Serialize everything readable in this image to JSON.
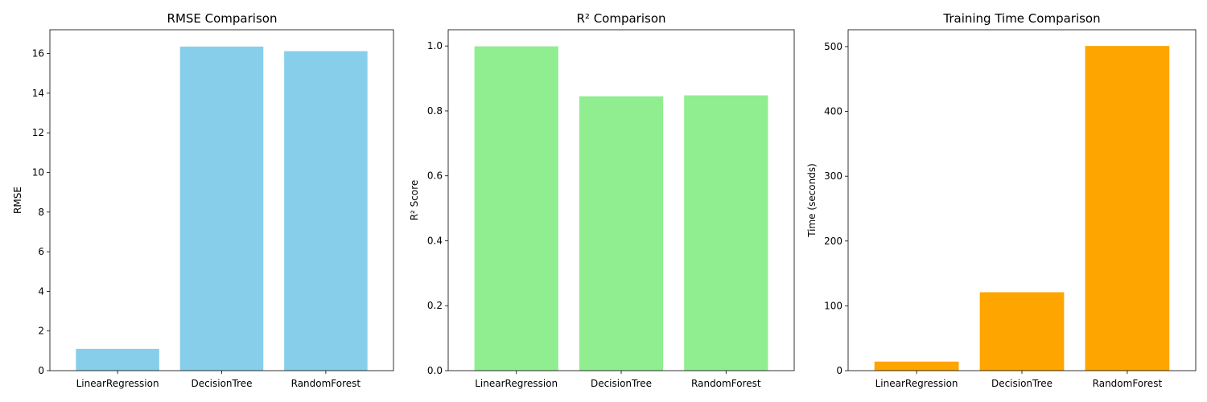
{
  "chart_data": [
    {
      "type": "bar",
      "title": "RMSE Comparison",
      "xlabel": "",
      "ylabel": "RMSE",
      "categories": [
        "LinearRegression",
        "DecisionTree",
        "RandomForest"
      ],
      "values": [
        1.1,
        16.35,
        16.12
      ],
      "ylim": [
        0,
        17.2
      ],
      "yticks": [
        "0",
        "2",
        "4",
        "6",
        "8",
        "10",
        "12",
        "14",
        "16"
      ],
      "color": "#87ceeb",
      "grid": false
    },
    {
      "type": "bar",
      "title": "R² Comparison",
      "xlabel": "",
      "ylabel": "R² Score",
      "categories": [
        "LinearRegression",
        "DecisionTree",
        "RandomForest"
      ],
      "values": [
        0.999,
        0.845,
        0.848
      ],
      "ylim": [
        0,
        1.05
      ],
      "yticks": [
        "0.0",
        "0.2",
        "0.4",
        "0.6",
        "0.8",
        "1.0"
      ],
      "color": "#90ee90",
      "grid": false
    },
    {
      "type": "bar",
      "title": "Training Time Comparison",
      "xlabel": "",
      "ylabel": "Time (seconds)",
      "categories": [
        "LinearRegression",
        "DecisionTree",
        "RandomForest"
      ],
      "values": [
        14,
        121,
        501
      ],
      "ylim": [
        0,
        526
      ],
      "yticks": [
        "0",
        "100",
        "200",
        "300",
        "400",
        "500"
      ],
      "color": "#ffa500",
      "grid": false
    }
  ]
}
